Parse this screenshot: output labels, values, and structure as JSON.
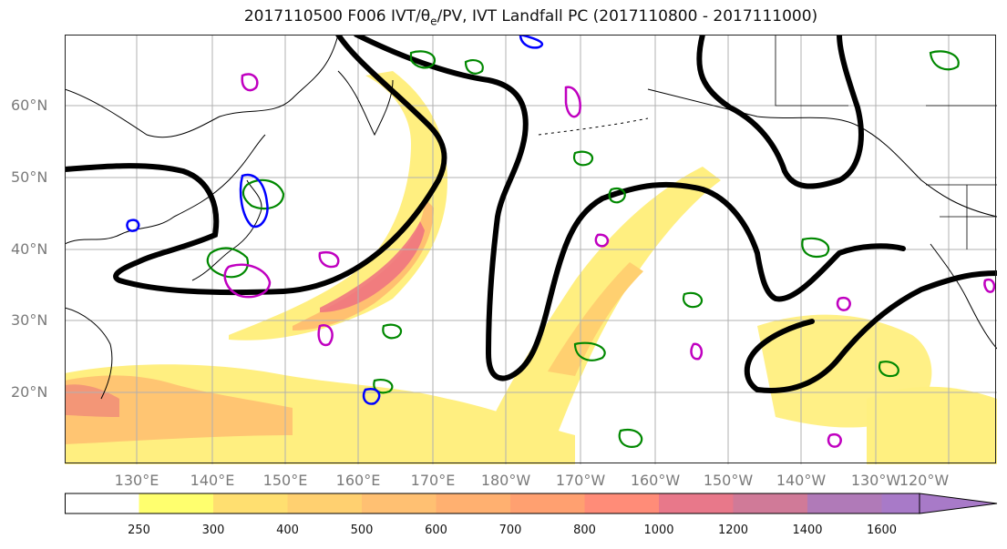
{
  "title": {
    "prefix": "2017110500 F006 IVT/",
    "theta": "θ",
    "theta_sub": "e",
    "suffix": "/PV, IVT Landfall PC (2017110800 - 2017111000)"
  },
  "lat_labels": [
    "60°N",
    "50°N",
    "40°N",
    "30°N",
    "20°N"
  ],
  "lon_labels": [
    "130°E",
    "140°E",
    "150°E",
    "160°E",
    "170°E",
    "180°W",
    "170°W",
    "160°W",
    "150°W",
    "140°W",
    "130°W",
    "120°W"
  ],
  "colorbar": {
    "levels": [
      250,
      300,
      400,
      500,
      600,
      700,
      800,
      1000,
      1200,
      1400,
      1600
    ],
    "tick_labels": [
      "250",
      "300",
      "400",
      "500",
      "600",
      "700",
      "800",
      "1000",
      "1200",
      "1400",
      "1600"
    ],
    "colors": [
      "#ffffff",
      "#ffff6e",
      "#ffdf70",
      "#ffd070",
      "#ffc072",
      "#ffb070",
      "#ffa070",
      "#ff8c78",
      "#e8788a",
      "#d07a98",
      "#b07ab8",
      "#a87ac8"
    ]
  },
  "colors": {
    "ivt_low": "#ffff6e",
    "ivt_mid": "#ffc070",
    "ivt_high": "#ee7080",
    "jet_contour": "#000000",
    "theta_e_contour": "#008800",
    "pv_pos_contour": "#0000ff",
    "pv_neg_contour": "#c000c0"
  }
}
